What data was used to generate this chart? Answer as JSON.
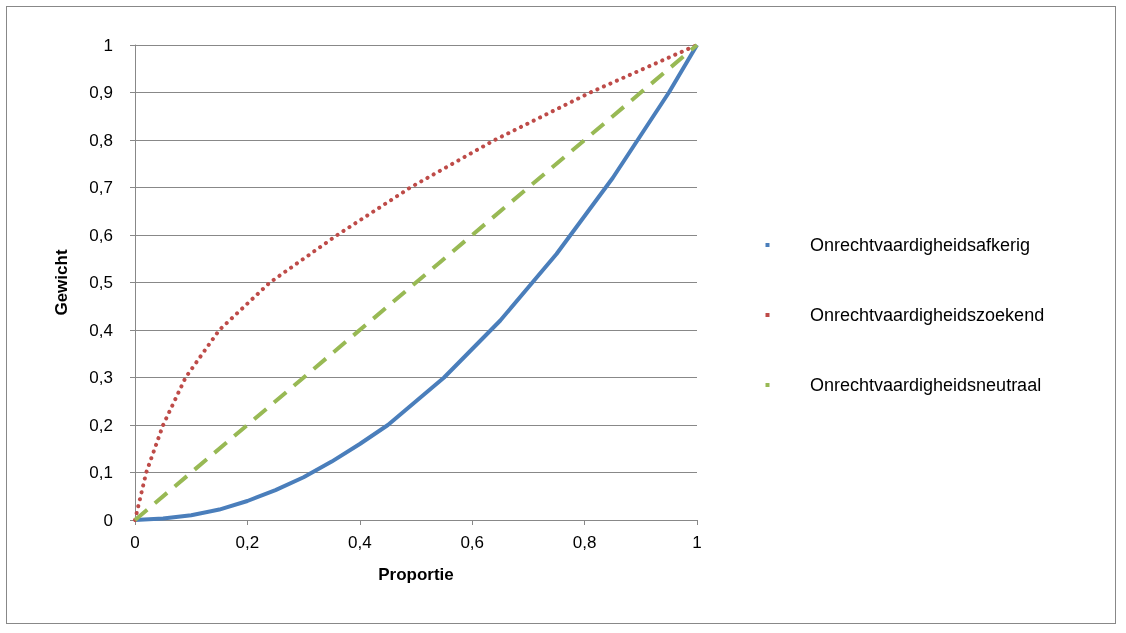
{
  "chart_data": {
    "type": "line",
    "xlabel": "Proportie",
    "ylabel": "Gewicht",
    "xlim": [
      0,
      1
    ],
    "ylim": [
      0,
      1
    ],
    "xticks": [
      0,
      {
        "value": 0.2,
        "label": "0,2"
      },
      {
        "value": 0.4,
        "label": "0,4"
      },
      {
        "value": 0.6,
        "label": "0,6"
      },
      {
        "value": 0.8,
        "label": "0,8"
      },
      1
    ],
    "yticks": [
      0,
      {
        "value": 0.1,
        "label": "0,1"
      },
      {
        "value": 0.2,
        "label": "0,2"
      },
      {
        "value": 0.3,
        "label": "0,3"
      },
      {
        "value": 0.4,
        "label": "0,4"
      },
      {
        "value": 0.5,
        "label": "0,5"
      },
      {
        "value": 0.6,
        "label": "0,6"
      },
      {
        "value": 0.7,
        "label": "0,7"
      },
      {
        "value": 0.8,
        "label": "0,8"
      },
      {
        "value": 0.9,
        "label": "0,9"
      },
      1
    ],
    "grid": "y",
    "legend": "right",
    "marker": "none",
    "series": [
      {
        "name": "Onrechtvaardigheidsafkerig",
        "color": "#4a7ebb",
        "line_style": "solid",
        "x": [
          0,
          0.05,
          0.1,
          0.15,
          0.2,
          0.25,
          0.3,
          0.35,
          0.4,
          0.45,
          0.5,
          0.55,
          0.6,
          0.65,
          0.7,
          0.75,
          0.8,
          0.85,
          0.9,
          0.95,
          1
        ],
        "values": [
          0,
          0.003,
          0.01,
          0.022,
          0.04,
          0.063,
          0.09,
          0.123,
          0.16,
          0.2,
          0.25,
          0.3,
          0.36,
          0.42,
          0.49,
          0.56,
          0.64,
          0.72,
          0.81,
          0.9,
          1
        ]
      },
      {
        "name": "Onrechtvaardigheidszoekend",
        "color": "#be4b48",
        "line_style": "dotted",
        "x": [
          0,
          0.02,
          0.05,
          0.09,
          0.15,
          0.24,
          0.36,
          0.49,
          0.64,
          0.81,
          1
        ],
        "values": [
          0,
          0.1,
          0.2,
          0.3,
          0.4,
          0.5,
          0.6,
          0.7,
          0.8,
          0.9,
          1
        ]
      },
      {
        "name": "Onrechtvaardigheidsneutraal",
        "color": "#98b954",
        "line_style": "dashed",
        "x": [
          0,
          1
        ],
        "values": [
          0,
          1
        ]
      }
    ]
  }
}
